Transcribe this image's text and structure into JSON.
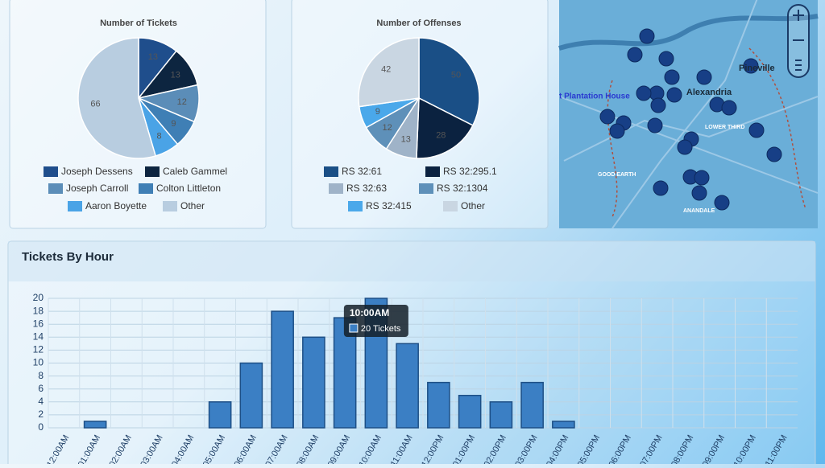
{
  "chart_data": [
    {
      "type": "pie",
      "title": "Number of Tickets",
      "categories": [
        "Joseph Dessens",
        "Caleb Gammel",
        "Joseph Carroll",
        "Colton Littleton",
        "Aaron Boyette",
        "Other"
      ],
      "values": [
        13,
        13,
        12,
        9,
        8,
        66
      ],
      "colors": [
        "#1f4e8c",
        "#0d2540",
        "#5b8db8",
        "#3f7fb5",
        "#4aa3e6",
        "#b8cde0"
      ]
    },
    {
      "type": "pie",
      "title": "Number of Offenses",
      "categories": [
        "RS 32:61",
        "RS 32:295.1",
        "RS 32:63",
        "RS 32:1304",
        "RS 32:415",
        "Other"
      ],
      "values": [
        50,
        28,
        13,
        12,
        9,
        42
      ],
      "colors": [
        "#1a4f86",
        "#0b2240",
        "#9fb3c8",
        "#5e90b9",
        "#4aa8ea",
        "#c9d6e2"
      ]
    },
    {
      "type": "bar",
      "title": "Tickets By Hour",
      "categories": [
        "12:00AM",
        "01:00AM",
        "02:00AM",
        "03:00AM",
        "04:00AM",
        "05:00AM",
        "06:00AM",
        "07:00AM",
        "08:00AM",
        "09:00AM",
        "10:00AM",
        "11:00AM",
        "12:00PM",
        "01:00PM",
        "02:00PM",
        "03:00PM",
        "04:00PM",
        "05:00PM",
        "06:00PM",
        "07:00PM",
        "08:00PM",
        "09:00PM",
        "10:00PM",
        "11:00PM"
      ],
      "values": [
        0,
        1,
        0,
        0,
        0,
        4,
        10,
        18,
        14,
        17,
        20,
        13,
        7,
        5,
        4,
        7,
        1,
        0,
        0,
        0,
        0,
        0,
        0,
        0
      ],
      "color": "#3b7fc4",
      "ylim": [
        0,
        20
      ],
      "yticks": [
        0,
        2,
        4,
        6,
        8,
        10,
        12,
        14,
        16,
        18,
        20
      ],
      "grid": true,
      "tooltip": {
        "title": "10:00AM",
        "label": "20 Tickets"
      }
    }
  ],
  "map": {
    "labels": [
      "Pineville",
      "Alexandria",
      "t Plantation House",
      "LOWER THIRD",
      "GOOD EARTH",
      "ANANDALE"
    ]
  }
}
